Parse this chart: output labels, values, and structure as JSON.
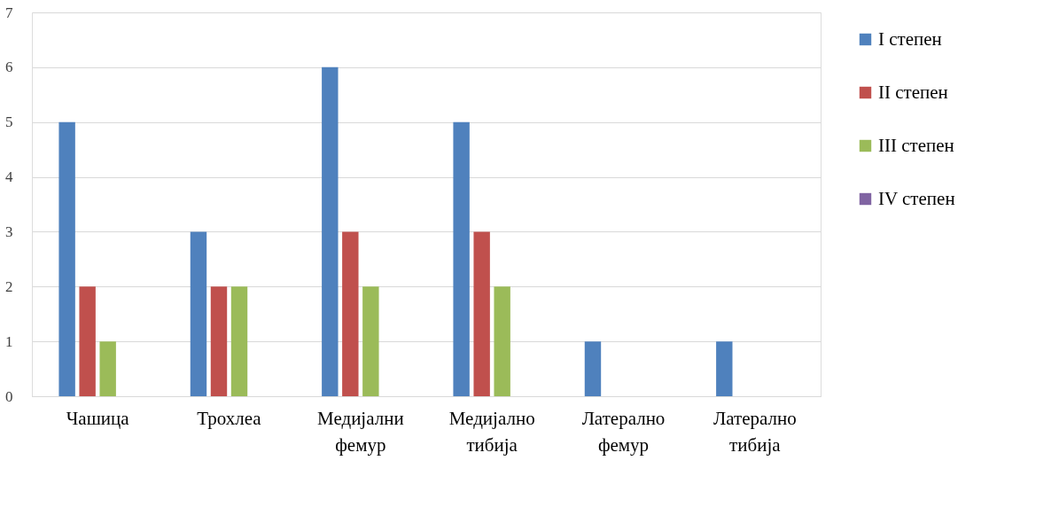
{
  "chart_data": {
    "type": "bar",
    "categories": [
      "Чашица",
      "Трохлеа",
      "Медијални фемур",
      "Медијално тибија",
      "Латерално фемур",
      "Латерално тибија"
    ],
    "series": [
      {
        "name": "I степен",
        "color": "#4f81bd",
        "values": [
          5,
          3,
          6,
          5,
          1,
          1
        ]
      },
      {
        "name": "II степен",
        "color": "#c0504d",
        "values": [
          2,
          2,
          3,
          3,
          0,
          0
        ]
      },
      {
        "name": "III степен",
        "color": "#9bbb59",
        "values": [
          1,
          2,
          2,
          2,
          0,
          0
        ]
      },
      {
        "name": "IV степен",
        "color": "#8064a2",
        "values": [
          0,
          0,
          0,
          0,
          0,
          0
        ]
      }
    ],
    "ylim": [
      0,
      7
    ],
    "yticks": [
      0,
      1,
      2,
      3,
      4,
      5,
      6,
      7
    ],
    "grid": "y",
    "legend": "right"
  }
}
